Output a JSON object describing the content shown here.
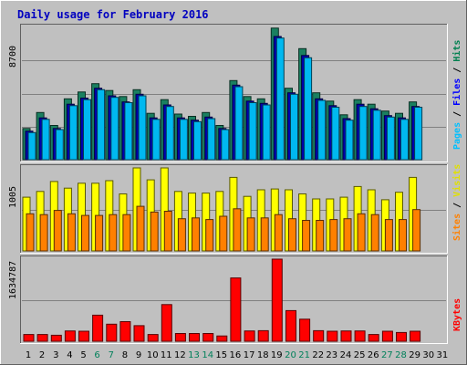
{
  "chart_data": {
    "type": "bar",
    "title": "Daily usage for February 2016",
    "days": [
      "1",
      "2",
      "3",
      "4",
      "5",
      "6",
      "7",
      "8",
      "9",
      "10",
      "11",
      "12",
      "13",
      "14",
      "15",
      "16",
      "17",
      "18",
      "19",
      "20",
      "21",
      "22",
      "23",
      "24",
      "25",
      "26",
      "27",
      "28",
      "29",
      "30",
      "31"
    ],
    "weekend_days": [
      "6",
      "7",
      "13",
      "14",
      "20",
      "21",
      "27",
      "28"
    ],
    "panels": [
      {
        "name": "hits-files-pages",
        "ymax_label": "8700",
        "ymax": 8700,
        "legend": [
          {
            "text": "Pages",
            "color": "#00c0ff"
          },
          {
            "text": " / ",
            "color": "#000000"
          },
          {
            "text": "Files",
            "color": "#0000ff"
          },
          {
            "text": " / ",
            "color": "#000000"
          },
          {
            "text": "Hits",
            "color": "#008050"
          }
        ],
        "series": [
          {
            "name": "Hits",
            "color": "#1a8060",
            "values": [
              2050,
              3100,
              2250,
              4000,
              4450,
              5000,
              4550,
              4150,
              4600,
              3050,
              3950,
              3000,
              2850,
              3100,
              2250,
              5200,
              4150,
              4000,
              8650,
              4700,
              7300,
              4400,
              3850,
              2950,
              3950,
              3650,
              3200,
              3050,
              3800,
              0,
              0
            ]
          },
          {
            "name": "Files",
            "color": "#0000b0",
            "values": [
              1880,
              2750,
              2050,
              3650,
              4050,
              4700,
              4200,
              3800,
              4300,
              2750,
              3600,
              2750,
              2600,
              2800,
              2050,
              4900,
              3850,
              3700,
              8100,
              4400,
              6850,
              4000,
              3550,
              2700,
              3650,
              3350,
              2900,
              2750,
              3500,
              0,
              0
            ]
          },
          {
            "name": "Pages",
            "color": "#00b8f0",
            "values": [
              1780,
              2650,
              1980,
              3550,
              3950,
              4600,
              4100,
              3750,
              4200,
              2650,
              3500,
              2650,
              2500,
              2700,
              1980,
              4800,
              3750,
              3600,
              8000,
              4300,
              6700,
              3900,
              3450,
              2600,
              3500,
              3250,
              2800,
              2650,
              3450,
              0,
              0
            ]
          }
        ]
      },
      {
        "name": "visits-sites",
        "ymax_label": "1005",
        "ymax": 1005,
        "legend": [
          {
            "text": "Sites",
            "color": "#ff8000"
          },
          {
            "text": " / ",
            "color": "#000000"
          },
          {
            "text": "Visits",
            "color": "#e0e000"
          }
        ],
        "series": [
          {
            "name": "Visits",
            "color": "#ffff00",
            "values": [
              650,
              720,
              840,
              760,
              820,
              820,
              850,
              690,
              1005,
              860,
              1005,
              720,
              700,
              700,
              720,
              890,
              660,
              740,
              750,
              740,
              690,
              630,
              630,
              650,
              780,
              740,
              620,
              710,
              890,
              0,
              0
            ]
          },
          {
            "name": "Sites",
            "color": "#ff8000",
            "values": [
              450,
              440,
              490,
              450,
              430,
              430,
              440,
              440,
              540,
              470,
              480,
              390,
              400,
              380,
              420,
              510,
              400,
              400,
              440,
              390,
              370,
              370,
              380,
              390,
              450,
              440,
              380,
              380,
              500,
              0,
              0
            ]
          }
        ]
      },
      {
        "name": "kbytes",
        "ymax_label": "1634787",
        "ymax": 1634787,
        "legend": [
          {
            "text": "KBytes",
            "color": "#ff0000"
          }
        ],
        "series": [
          {
            "name": "KBytes",
            "color": "#ff0000",
            "values": [
              135000,
              135000,
              120000,
              205000,
              200000,
              520000,
              340000,
              390000,
              310000,
              135000,
              730000,
              155000,
              155000,
              155000,
              105000,
              1260000,
              205000,
              210000,
              1634787,
              610000,
              440000,
              210000,
              200000,
              205000,
              205000,
              135000,
              200000,
              175000,
              200000,
              0,
              0
            ]
          }
        ]
      }
    ]
  }
}
